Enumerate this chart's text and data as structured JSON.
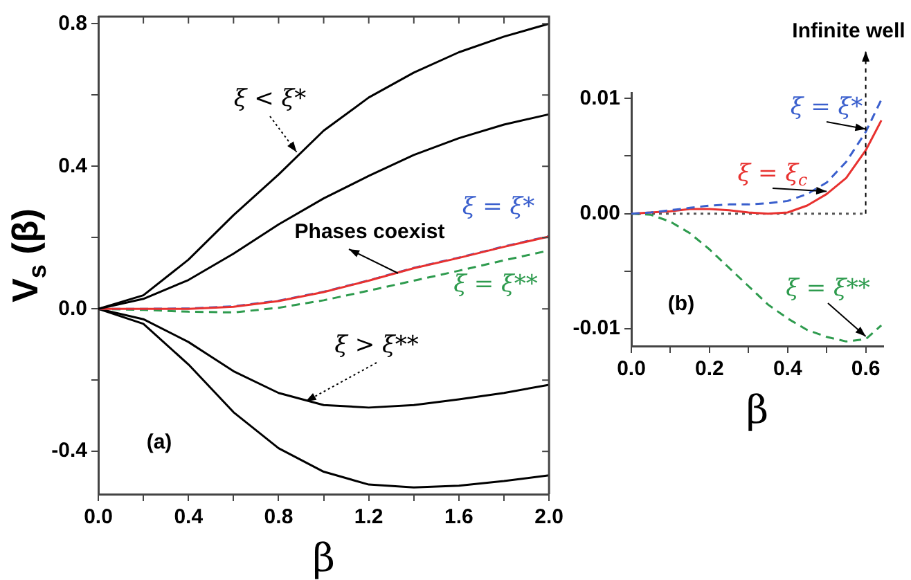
{
  "chart_data": [
    {
      "type": "line",
      "xlabel": "β",
      "ylabel": "V$_{s}$ (β)",
      "x": [
        0,
        0.2,
        0.4,
        0.6,
        0.8,
        1.0,
        1.2,
        1.4,
        1.6,
        1.8,
        2.0
      ],
      "series": [
        {
          "color": "#000000",
          "line_style": "solid",
          "values": [
            0,
            0.038,
            0.138,
            0.263,
            0.377,
            0.5,
            0.593,
            0.663,
            0.72,
            0.764,
            0.8
          ]
        },
        {
          "color": "#000000",
          "line_style": "solid",
          "values": [
            0,
            0.028,
            0.081,
            0.155,
            0.237,
            0.31,
            0.373,
            0.432,
            0.479,
            0.517,
            0.546
          ]
        },
        {
          "color": "#e8312f",
          "line_style": "solid",
          "values": [
            0,
            0,
            0,
            0.006,
            0.022,
            0.047,
            0.079,
            0.114,
            0.143,
            0.174,
            0.203
          ]
        },
        {
          "name": "ξ = ξ*",
          "color": "#3a5fcd",
          "line_style": "dashed",
          "values": [
            0,
            0,
            0.001,
            0.007,
            0.023,
            0.048,
            0.08,
            0.115,
            0.144,
            0.175,
            0.204
          ]
        },
        {
          "name": "ξ = ξ**",
          "color": "#2e9b4e",
          "line_style": "dashed",
          "values": [
            0,
            -0.003,
            -0.008,
            -0.01,
            0.003,
            0.024,
            0.051,
            0.079,
            0.107,
            0.136,
            0.164
          ]
        },
        {
          "color": "#000000",
          "line_style": "solid",
          "values": [
            0,
            -0.029,
            -0.093,
            -0.175,
            -0.236,
            -0.27,
            -0.277,
            -0.27,
            -0.254,
            -0.236,
            -0.213
          ]
        },
        {
          "color": "#000000",
          "line_style": "solid",
          "values": [
            0,
            -0.042,
            -0.156,
            -0.29,
            -0.391,
            -0.457,
            -0.493,
            -0.501,
            -0.496,
            -0.483,
            -0.467
          ]
        }
      ],
      "xlim": [
        0,
        2.0
      ],
      "ylim": [
        -0.52,
        0.82
      ],
      "xticks": [
        {
          "value": 0,
          "label": "0.0"
        },
        {
          "value": 0.2,
          "label": null
        },
        {
          "value": 0.4,
          "label": "0.4"
        },
        {
          "value": 0.6,
          "label": null
        },
        {
          "value": 0.8,
          "label": "0.8"
        },
        {
          "value": 1.0,
          "label": null
        },
        {
          "value": 1.2,
          "label": "1.2"
        },
        {
          "value": 1.4,
          "label": null
        },
        {
          "value": 1.6,
          "label": "1.6"
        },
        {
          "value": 1.8,
          "label": null
        },
        {
          "value": 2.0,
          "label": "2.0"
        }
      ],
      "yticks": [
        {
          "value": -0.4,
          "label": "-0.4"
        },
        {
          "value": -0.2,
          "label": null
        },
        {
          "value": 0,
          "label": "0.0"
        },
        {
          "value": 0.2,
          "label": null
        },
        {
          "value": 0.4,
          "label": "0.4"
        },
        {
          "value": 0.6,
          "label": null
        },
        {
          "value": 0.8,
          "label": "0.8"
        }
      ],
      "annotations": [
        {
          "text": "ξ < ξ*",
          "x": 0.88,
          "y": 0.44
        },
        {
          "text": "Phases coexist",
          "x": 1.33,
          "y": 0.1
        },
        {
          "text": "ξ > ξ**",
          "x": 0.92,
          "y": -0.26
        },
        "(a)"
      ],
      "grid": false,
      "legend": false,
      "marker": "none"
    },
    {
      "type": "line",
      "xlabel": "β",
      "x": [
        0,
        0.05,
        0.1,
        0.15,
        0.2,
        0.25,
        0.3,
        0.35,
        0.4,
        0.45,
        0.5,
        0.55,
        0.6,
        0.64
      ],
      "series": [
        {
          "name": "ξ = ξ*",
          "color": "#3a5fcd",
          "line_style": "dashed",
          "values": [
            0,
            0.0001,
            0.0003,
            0.0005,
            0.0007,
            0.0008,
            0.0008,
            0.0009,
            0.0011,
            0.0017,
            0.0027,
            0.0045,
            0.0071,
            0.0099
          ]
        },
        {
          "name": "ξ = ξ$_{c}$",
          "color": "#e8312f",
          "line_style": "solid",
          "values": [
            0,
            0.0001,
            0.0002,
            0.0004,
            0.0004,
            0.0003,
            0.0001,
            0,
            0.0001,
            0.0007,
            0.0017,
            0.0031,
            0.0055,
            0.0081
          ]
        },
        {
          "name": "ξ = ξ**",
          "color": "#2e9b4e",
          "line_style": "dashed",
          "values": [
            0,
            -0.0001,
            -0.0007,
            -0.0017,
            -0.0031,
            -0.0047,
            -0.0063,
            -0.0079,
            -0.0091,
            -0.0101,
            -0.0107,
            -0.0111,
            -0.0109,
            -0.0097
          ]
        },
        {
          "color": "#555555",
          "line_style": "dotted",
          "x": [
            0,
            0.6
          ],
          "values": [
            0,
            0
          ]
        }
      ],
      "xlim": [
        0,
        0.645
      ],
      "ylim": [
        -0.0115,
        0.0105
      ],
      "xticks": [
        {
          "value": 0,
          "label": "0.0"
        },
        {
          "value": 0.1,
          "label": null
        },
        {
          "value": 0.2,
          "label": "0.2"
        },
        {
          "value": 0.3,
          "label": null
        },
        {
          "value": 0.4,
          "label": "0.4"
        },
        {
          "value": 0.5,
          "label": null
        },
        {
          "value": 0.6,
          "label": "0.6"
        }
      ],
      "yticks": [
        {
          "value": -0.01,
          "label": "-0.01"
        },
        {
          "value": -0.005,
          "label": null
        },
        {
          "value": 0,
          "label": "0.00"
        },
        {
          "value": 0.005,
          "label": null
        },
        {
          "value": 0.01,
          "label": "0.01"
        }
      ],
      "annotations": [
        {
          "text": "Infinite well",
          "x": 0.6,
          "y": 0
        },
        "(b)"
      ],
      "grid": false,
      "legend": false,
      "marker": "none"
    }
  ]
}
